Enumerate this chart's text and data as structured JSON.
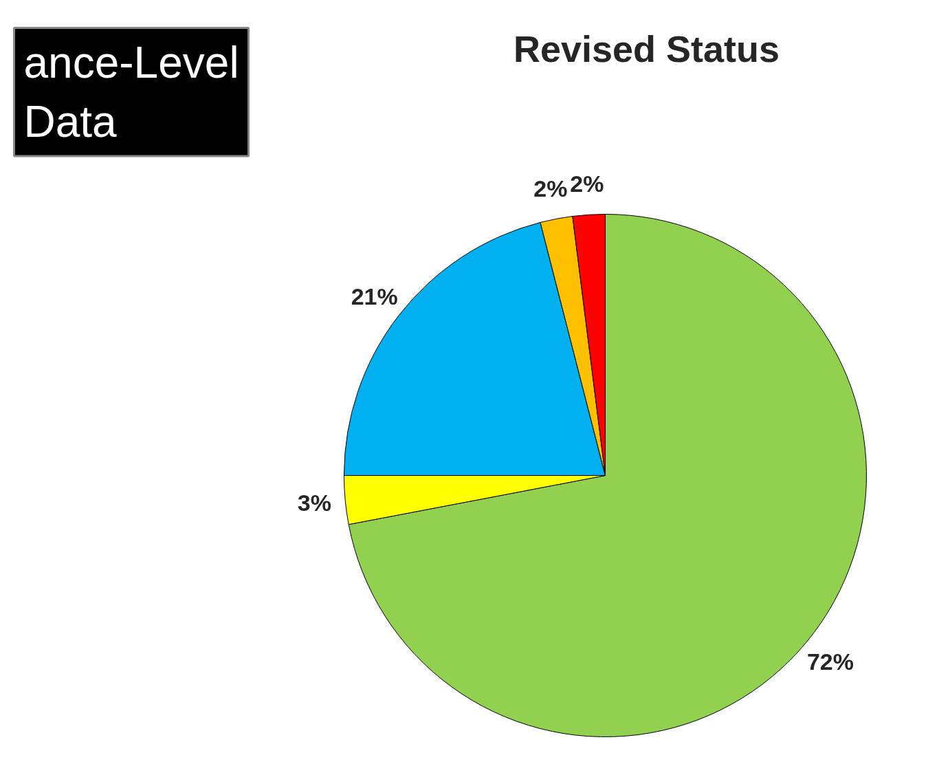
{
  "chart_data": {
    "type": "pie",
    "title": "Revised Status",
    "categories": [
      null,
      null,
      null,
      null,
      null
    ],
    "values": [
      72,
      3,
      21,
      2,
      2
    ],
    "colors": [
      "#92d050",
      "#ffff00",
      "#00b0f0",
      "#ffc000",
      "#ff0000"
    ],
    "value_labels": [
      "72%",
      "3%",
      "21%",
      "2%",
      "2%"
    ],
    "annotations": [
      "ance-Level\nData"
    ]
  }
}
